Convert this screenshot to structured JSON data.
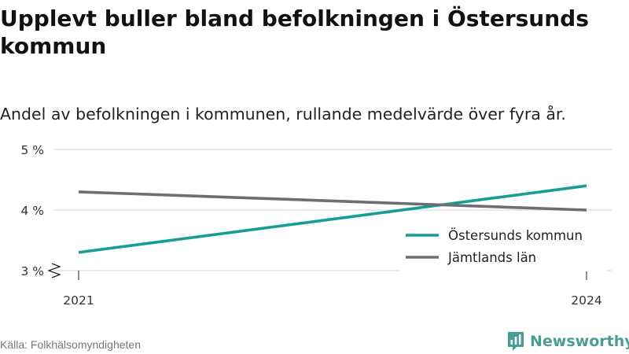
{
  "header": {
    "title": "Upplevt buller bland befolkningen i Östersunds kommun",
    "subtitle": "Andel av befolkningen i kommunen, rullande medelvärde över fyra år."
  },
  "footer": {
    "source": "Källa: Folkhälsomyndigheten",
    "brand": "Newsworthy"
  },
  "colors": {
    "ostersund": "#159e94",
    "jamtland": "#6e6d75",
    "grid": "#dddddd",
    "brand": "#4a9d95"
  },
  "chart_data": {
    "type": "line",
    "x": [
      2021,
      2024
    ],
    "x_tick_labels": [
      "2021",
      "2024"
    ],
    "series": [
      {
        "name": "Östersunds kommun",
        "values": [
          3.3,
          4.4
        ],
        "color": "#159e94"
      },
      {
        "name": "Jämtlands län",
        "values": [
          4.3,
          4.0
        ],
        "color": "#6e6d75"
      }
    ],
    "ylim": [
      3,
      5
    ],
    "y_ticks": [
      3,
      4,
      5
    ],
    "y_tick_labels": [
      "3 %",
      "4 %",
      "5 %"
    ],
    "axis_break": true,
    "grid": "horizontal",
    "legend": "bottom-right"
  }
}
